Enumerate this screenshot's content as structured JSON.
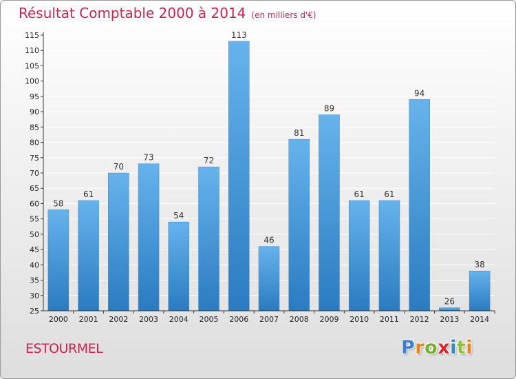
{
  "header": {
    "title": "Résultat Comptable 2000 à 2014",
    "subtitle": "(en milliers d'€)"
  },
  "footer": {
    "commune": "ESTOURMEL",
    "brand": "Proxiti",
    "brand_letter_colors": [
      "#3d7fd1",
      "#e8831d",
      "#7bb02f",
      "#d8282e",
      "#2f88c8",
      "#8fbf35",
      "#e8831d"
    ]
  },
  "colors": {
    "title": "#c8264e",
    "bar_light": "#66b3ec",
    "bar_dark": "#2a7bc0",
    "axis": "#333333",
    "grid": "#ffffff"
  },
  "chart_data": {
    "type": "bar",
    "title": "Résultat Comptable 2000 à 2014",
    "subtitle": "(en milliers d'€)",
    "xlabel": "",
    "ylabel": "",
    "categories": [
      "2000",
      "2001",
      "2002",
      "2003",
      "2004",
      "2005",
      "2006",
      "2007",
      "2008",
      "2009",
      "2010",
      "2011",
      "2012",
      "2013",
      "2014"
    ],
    "values": [
      58,
      61,
      70,
      73,
      54,
      72,
      113,
      46,
      81,
      89,
      61,
      61,
      94,
      26,
      38
    ],
    "ylim": [
      25,
      115
    ],
    "yticks": [
      25,
      30,
      35,
      40,
      45,
      50,
      55,
      60,
      65,
      70,
      75,
      80,
      85,
      90,
      95,
      100,
      105,
      110,
      115
    ],
    "grid": true,
    "legend": "none"
  }
}
